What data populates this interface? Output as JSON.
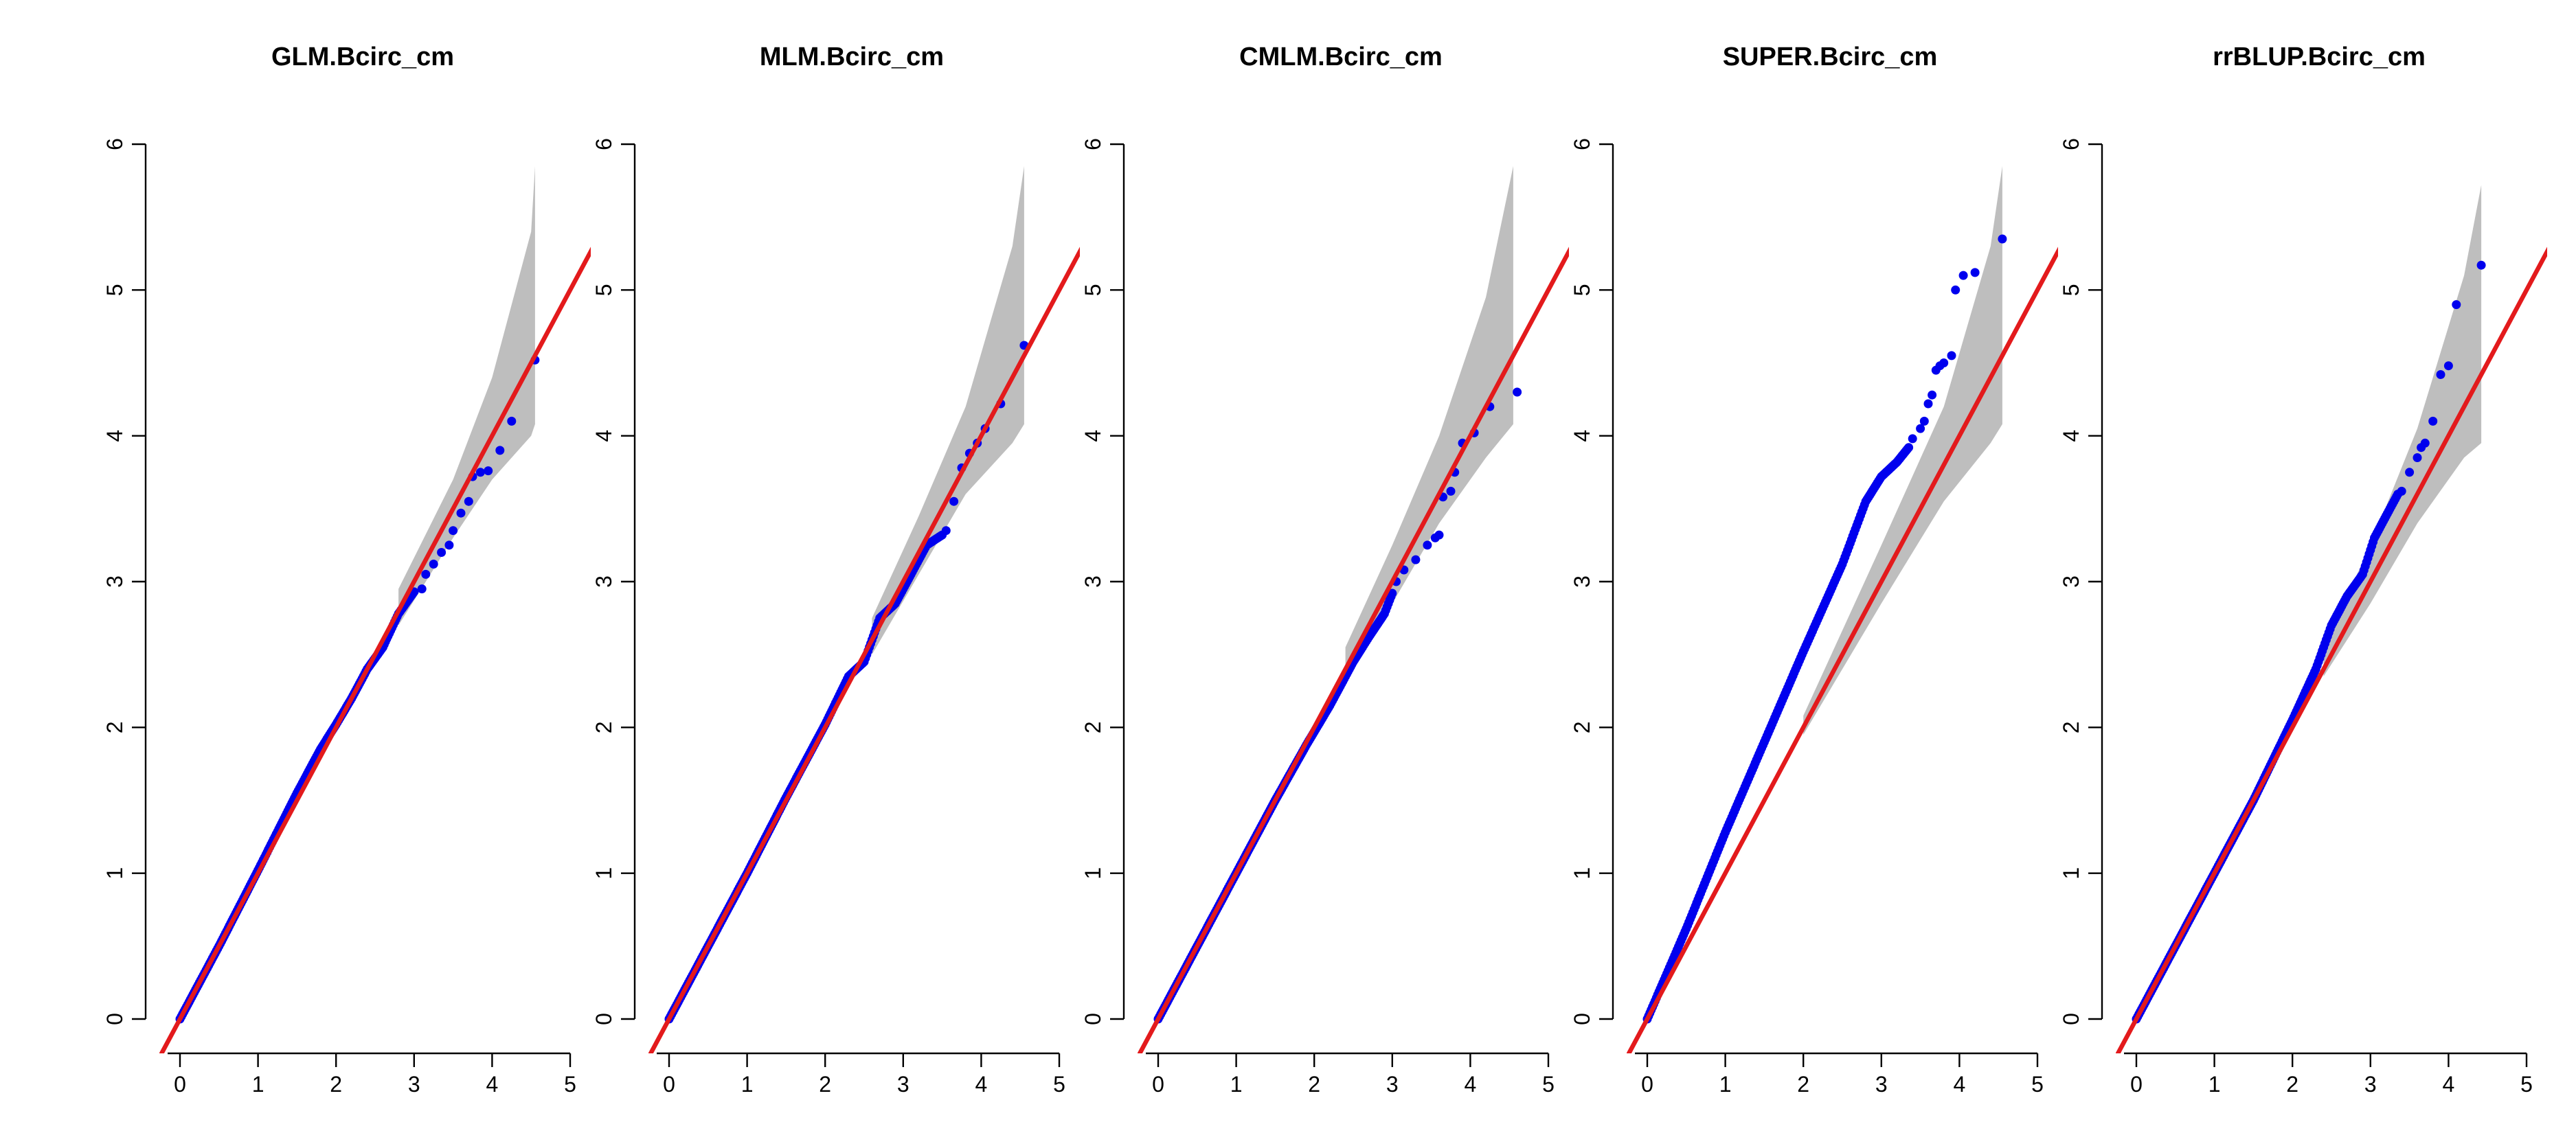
{
  "figure_colors": {
    "band": "#bebebe",
    "points": "#0000ee",
    "line": "#e31a1c",
    "axes": "#000000"
  },
  "chart_data": [
    {
      "type": "scatter",
      "title": "GLM.Bcirc_cm",
      "xlabel": "",
      "ylabel": "",
      "xlim": [
        0,
        5
      ],
      "ylim": [
        0,
        6
      ],
      "x_ticks": [
        "0",
        "1",
        "2",
        "3",
        "4",
        "5"
      ],
      "y_ticks": [
        "0",
        "1",
        "2",
        "3",
        "4",
        "5",
        "6"
      ],
      "grid": false,
      "reference_line": {
        "slope": 1,
        "intercept": 0
      },
      "confidence_band": {
        "x": [
          2.8,
          3.5,
          4.0,
          4.5,
          4.55
        ],
        "upper": [
          2.95,
          3.7,
          4.4,
          5.4,
          5.85
        ],
        "lower": [
          2.7,
          3.3,
          3.7,
          4.0,
          4.08
        ]
      },
      "points": {
        "main_path": [
          [
            0,
            0
          ],
          [
            0.5,
            0.5
          ],
          [
            1.0,
            1.02
          ],
          [
            1.5,
            1.55
          ],
          [
            1.8,
            1.85
          ],
          [
            2.0,
            2.02
          ],
          [
            2.2,
            2.2
          ],
          [
            2.4,
            2.4
          ],
          [
            2.6,
            2.55
          ],
          [
            2.8,
            2.78
          ],
          [
            3.0,
            2.93
          ]
        ],
        "tail": [
          [
            3.1,
            2.95
          ],
          [
            3.15,
            3.05
          ],
          [
            3.25,
            3.12
          ],
          [
            3.35,
            3.2
          ],
          [
            3.45,
            3.25
          ],
          [
            3.5,
            3.35
          ],
          [
            3.6,
            3.47
          ],
          [
            3.7,
            3.55
          ],
          [
            3.75,
            3.72
          ],
          [
            3.85,
            3.75
          ],
          [
            3.95,
            3.76
          ],
          [
            4.1,
            3.9
          ],
          [
            4.25,
            4.1
          ],
          [
            4.55,
            4.52
          ]
        ]
      }
    },
    {
      "type": "scatter",
      "title": "MLM.Bcirc_cm",
      "xlabel": "",
      "ylabel": "",
      "xlim": [
        0,
        5
      ],
      "ylim": [
        0,
        6
      ],
      "x_ticks": [
        "0",
        "1",
        "2",
        "3",
        "4",
        "5"
      ],
      "y_ticks": [
        "0",
        "1",
        "2",
        "3",
        "4",
        "5",
        "6"
      ],
      "grid": false,
      "reference_line": {
        "slope": 1,
        "intercept": 0
      },
      "confidence_band": {
        "x": [
          2.6,
          3.2,
          3.8,
          4.4,
          4.55
        ],
        "upper": [
          2.75,
          3.45,
          4.2,
          5.3,
          5.85
        ],
        "lower": [
          2.5,
          3.05,
          3.6,
          3.95,
          4.08
        ]
      },
      "points": {
        "main_path": [
          [
            0,
            0
          ],
          [
            0.5,
            0.5
          ],
          [
            1.0,
            1.0
          ],
          [
            1.5,
            1.52
          ],
          [
            2.0,
            2.02
          ],
          [
            2.3,
            2.35
          ],
          [
            2.5,
            2.45
          ],
          [
            2.7,
            2.75
          ],
          [
            2.9,
            2.85
          ],
          [
            3.1,
            3.05
          ],
          [
            3.3,
            3.25
          ],
          [
            3.5,
            3.32
          ]
        ],
        "tail": [
          [
            3.55,
            3.35
          ],
          [
            3.65,
            3.55
          ],
          [
            3.75,
            3.78
          ],
          [
            3.85,
            3.88
          ],
          [
            3.95,
            3.95
          ],
          [
            4.05,
            4.05
          ],
          [
            4.25,
            4.22
          ],
          [
            4.55,
            4.62
          ]
        ]
      }
    },
    {
      "type": "scatter",
      "title": "CMLM.Bcirc_cm",
      "xlabel": "",
      "ylabel": "",
      "xlim": [
        0,
        5
      ],
      "ylim": [
        0,
        6
      ],
      "x_ticks": [
        "0",
        "1",
        "2",
        "3",
        "4",
        "5"
      ],
      "y_ticks": [
        "0",
        "1",
        "2",
        "3",
        "4",
        "5",
        "6"
      ],
      "grid": false,
      "reference_line": {
        "slope": 1,
        "intercept": 0
      },
      "confidence_band": {
        "x": [
          2.4,
          3.0,
          3.6,
          4.2,
          4.55
        ],
        "upper": [
          2.55,
          3.25,
          4.0,
          4.95,
          5.85
        ],
        "lower": [
          2.35,
          2.85,
          3.4,
          3.85,
          4.08
        ]
      },
      "points": {
        "main_path": [
          [
            0,
            0
          ],
          [
            0.5,
            0.5
          ],
          [
            1.0,
            1.0
          ],
          [
            1.5,
            1.5
          ],
          [
            1.9,
            1.88
          ],
          [
            2.2,
            2.15
          ],
          [
            2.5,
            2.45
          ],
          [
            2.7,
            2.62
          ],
          [
            2.9,
            2.78
          ],
          [
            3.0,
            2.92
          ]
        ],
        "tail": [
          [
            3.05,
            3.0
          ],
          [
            3.15,
            3.08
          ],
          [
            3.3,
            3.15
          ],
          [
            3.45,
            3.25
          ],
          [
            3.55,
            3.3
          ],
          [
            3.6,
            3.32
          ],
          [
            3.65,
            3.58
          ],
          [
            3.75,
            3.62
          ],
          [
            3.8,
            3.75
          ],
          [
            3.9,
            3.95
          ],
          [
            4.05,
            4.02
          ],
          [
            4.25,
            4.2
          ],
          [
            4.6,
            4.3
          ]
        ]
      }
    },
    {
      "type": "scatter",
      "title": "SUPER.Bcirc_cm",
      "xlabel": "",
      "ylabel": "",
      "xlim": [
        0,
        5
      ],
      "ylim": [
        0,
        6
      ],
      "x_ticks": [
        "0",
        "1",
        "2",
        "3",
        "4",
        "5"
      ],
      "y_ticks": [
        "0",
        "1",
        "2",
        "3",
        "4",
        "5",
        "6"
      ],
      "grid": false,
      "reference_line": {
        "slope": 1,
        "intercept": 0
      },
      "confidence_band": {
        "x": [
          2.0,
          3.0,
          3.8,
          4.4,
          4.55
        ],
        "upper": [
          2.08,
          3.25,
          4.2,
          5.3,
          5.85
        ],
        "lower": [
          1.95,
          2.85,
          3.55,
          3.95,
          4.08
        ]
      },
      "points": {
        "main_path": [
          [
            0,
            0
          ],
          [
            0.5,
            0.62
          ],
          [
            1.0,
            1.28
          ],
          [
            1.5,
            1.9
          ],
          [
            2.0,
            2.52
          ],
          [
            2.5,
            3.12
          ],
          [
            2.8,
            3.55
          ],
          [
            3.0,
            3.72
          ],
          [
            3.2,
            3.82
          ],
          [
            3.35,
            3.92
          ]
        ],
        "tail": [
          [
            3.4,
            3.98
          ],
          [
            3.5,
            4.05
          ],
          [
            3.55,
            4.1
          ],
          [
            3.6,
            4.22
          ],
          [
            3.65,
            4.28
          ],
          [
            3.7,
            4.45
          ],
          [
            3.75,
            4.48
          ],
          [
            3.8,
            4.5
          ],
          [
            3.9,
            4.55
          ],
          [
            3.95,
            5.0
          ],
          [
            4.05,
            5.1
          ],
          [
            4.2,
            5.12
          ],
          [
            4.55,
            5.35
          ]
        ]
      }
    },
    {
      "type": "scatter",
      "title": "rrBLUP.Bcirc_cm",
      "xlabel": "",
      "ylabel": "",
      "xlim": [
        0,
        5
      ],
      "ylim": [
        0,
        6
      ],
      "x_ticks": [
        "0",
        "1",
        "2",
        "3",
        "4",
        "5"
      ],
      "y_ticks": [
        "0",
        "1",
        "2",
        "3",
        "4",
        "5",
        "6"
      ],
      "grid": false,
      "reference_line": {
        "slope": 1,
        "intercept": 0
      },
      "confidence_band": {
        "x": [
          2.4,
          3.0,
          3.6,
          4.2,
          4.42
        ],
        "upper": [
          2.55,
          3.25,
          4.05,
          5.1,
          5.72
        ],
        "lower": [
          2.35,
          2.85,
          3.4,
          3.85,
          3.95
        ]
      },
      "points": {
        "main_path": [
          [
            0,
            0
          ],
          [
            0.5,
            0.5
          ],
          [
            1.0,
            1.0
          ],
          [
            1.5,
            1.5
          ],
          [
            2.0,
            2.05
          ],
          [
            2.3,
            2.4
          ],
          [
            2.5,
            2.7
          ],
          [
            2.7,
            2.9
          ],
          [
            2.9,
            3.05
          ],
          [
            3.05,
            3.3
          ],
          [
            3.2,
            3.45
          ],
          [
            3.35,
            3.6
          ]
        ],
        "tail": [
          [
            3.4,
            3.62
          ],
          [
            3.5,
            3.75
          ],
          [
            3.6,
            3.85
          ],
          [
            3.65,
            3.92
          ],
          [
            3.7,
            3.95
          ],
          [
            3.8,
            4.1
          ],
          [
            3.9,
            4.42
          ],
          [
            4.0,
            4.48
          ],
          [
            4.1,
            4.9
          ],
          [
            4.42,
            5.17
          ]
        ]
      }
    }
  ]
}
